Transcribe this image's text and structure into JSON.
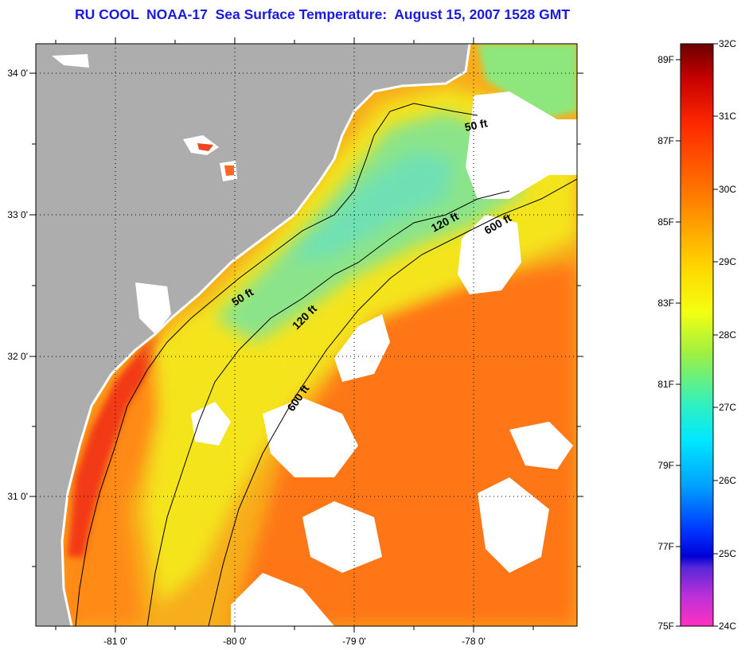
{
  "title": "RU COOL  NOAA-17  Sea Surface Temperature:  August 15, 2007 1528 GMT",
  "map": {
    "lat_labels": [
      "34 0'",
      "33 0'",
      "32 0'",
      "31 0'"
    ],
    "lon_labels": [
      "-81 0'",
      "-80 0'",
      "-79 0'",
      "-78 0'"
    ],
    "contour_labels": [
      "50 ft",
      "120 ft",
      "600 ft",
      "50 ft",
      "120 ft",
      "600 ft"
    ]
  },
  "colorbar": {
    "fahrenheit": [
      "89F",
      "87F",
      "85F",
      "83F",
      "81F",
      "79F",
      "77F",
      "75F"
    ],
    "celsius": [
      "32C",
      "31C",
      "30C",
      "29C",
      "28C",
      "27C",
      "26C",
      "25C",
      "24C"
    ]
  },
  "colors": {
    "title": "#1a1adf",
    "land": "#adadad",
    "cloud": "#ffffff",
    "warm_ocean": "#ff7a12",
    "mid_ocean": "#f2e81e",
    "cool_ocean": "#86e88a"
  }
}
